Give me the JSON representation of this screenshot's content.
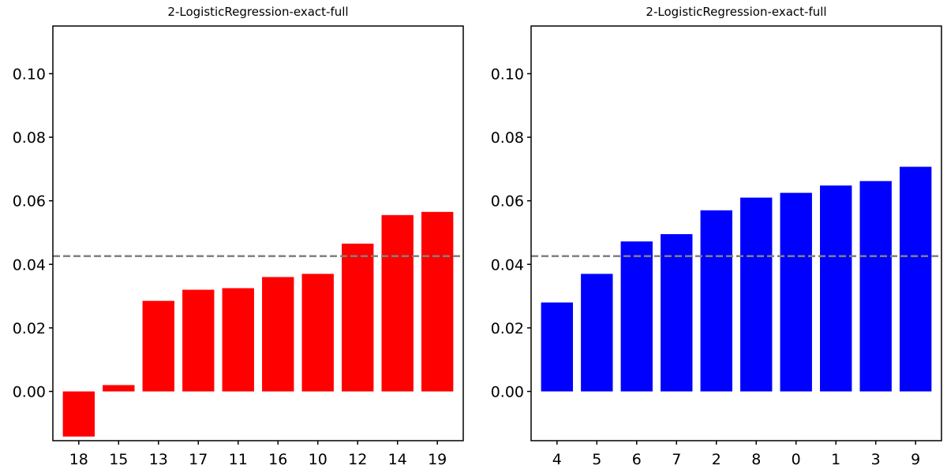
{
  "chart_data": [
    {
      "type": "bar",
      "title": "2-LogisticRegression-exact-full",
      "xlabel": "",
      "ylabel": "",
      "categories": [
        "18",
        "15",
        "13",
        "17",
        "11",
        "16",
        "10",
        "12",
        "14",
        "19"
      ],
      "values": [
        -0.0142,
        0.002,
        0.0285,
        0.032,
        0.0325,
        0.036,
        0.037,
        0.0465,
        0.0555,
        0.0565
      ],
      "bar_color": "#ff0000",
      "ylim": [
        -0.0155,
        0.115
      ],
      "yticks": [
        "0.00",
        "0.02",
        "0.04",
        "0.06",
        "0.08",
        "0.10"
      ],
      "reference_line": {
        "y": 0.0426,
        "color": "#808080",
        "style": "dashed"
      },
      "grid": false
    },
    {
      "type": "bar",
      "title": "2-LogisticRegression-exact-full",
      "xlabel": "",
      "ylabel": "",
      "categories": [
        "4",
        "5",
        "6",
        "7",
        "2",
        "8",
        "0",
        "1",
        "3",
        "9"
      ],
      "values": [
        0.028,
        0.037,
        0.0472,
        0.0495,
        0.057,
        0.061,
        0.0625,
        0.0648,
        0.0662,
        0.0707
      ],
      "bar_color": "#0000ff",
      "ylim": [
        -0.0155,
        0.115
      ],
      "yticks": [
        "0.00",
        "0.02",
        "0.04",
        "0.06",
        "0.08",
        "0.10"
      ],
      "reference_line": {
        "y": 0.0426,
        "color": "#808080",
        "style": "dashed"
      },
      "grid": false
    }
  ]
}
